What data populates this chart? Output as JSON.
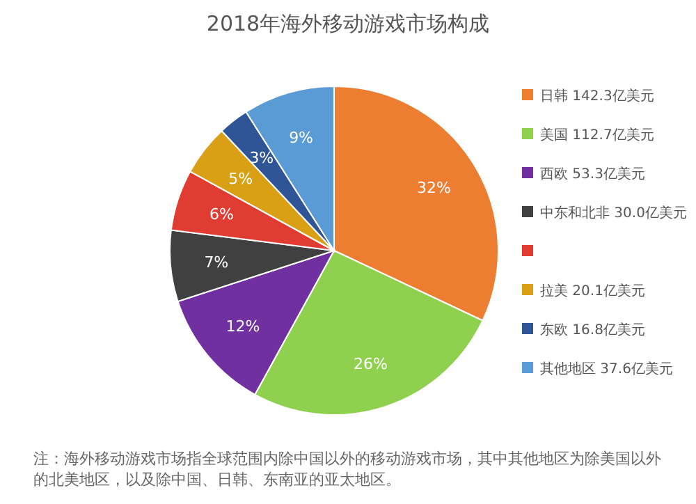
{
  "chart_data": {
    "type": "pie",
    "title": "2018年海外移动游戏市场构成",
    "categories": [
      "日韩 142.3亿美元",
      "美国 112.7亿美元",
      "西欧 53.3亿美元",
      "中东和北非 30.0亿美元",
      null,
      "拉美 20.1亿美元",
      "东欧 16.8亿美元",
      "其他地区 37.6亿美元"
    ],
    "values": [
      32,
      26,
      12,
      7,
      6,
      5,
      3,
      9
    ],
    "value_labels": [
      "32%",
      "26%",
      "12%",
      "7%",
      "6%",
      "5%",
      "3%",
      "9%"
    ],
    "colors": [
      "#ed7d31",
      "#8fd14f",
      "#7030a0",
      "#404040",
      "#e03c31",
      "#d9a016",
      "#2f5597",
      "#5b9bd5"
    ],
    "legend": "right",
    "annotations": [
      "注：海外移动游戏市场指全球范围内除中国以外的移动游戏市场，其中其他地区为除美国以外的北美地区，以及除中国、日韩、东南亚的亚太地区。"
    ]
  }
}
